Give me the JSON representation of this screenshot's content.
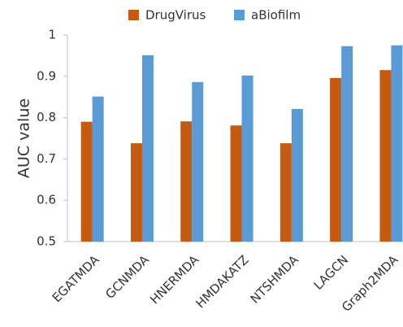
{
  "chart_data": {
    "type": "bar",
    "y_label": "AUC value",
    "categories": [
      "EGATMDA",
      "GCNMDA",
      "HNERMDA",
      "HMDAKATZ",
      "NTSHMDA",
      "LAGCN",
      "Graph2MDA"
    ],
    "series": [
      {
        "name": "DrugVirus",
        "color": "#c55a11",
        "values": [
          0.79,
          0.738,
          0.791,
          0.781,
          0.738,
          0.896,
          0.915
        ]
      },
      {
        "name": "aBiofilm",
        "color": "#5b9bd5",
        "values": [
          0.851,
          0.951,
          0.886,
          0.902,
          0.821,
          0.973,
          0.975
        ]
      }
    ],
    "ylim": [
      0.5,
      1
    ],
    "yticks": [
      0.5,
      0.6,
      0.7,
      0.8,
      0.9,
      1
    ],
    "legend": "top"
  }
}
